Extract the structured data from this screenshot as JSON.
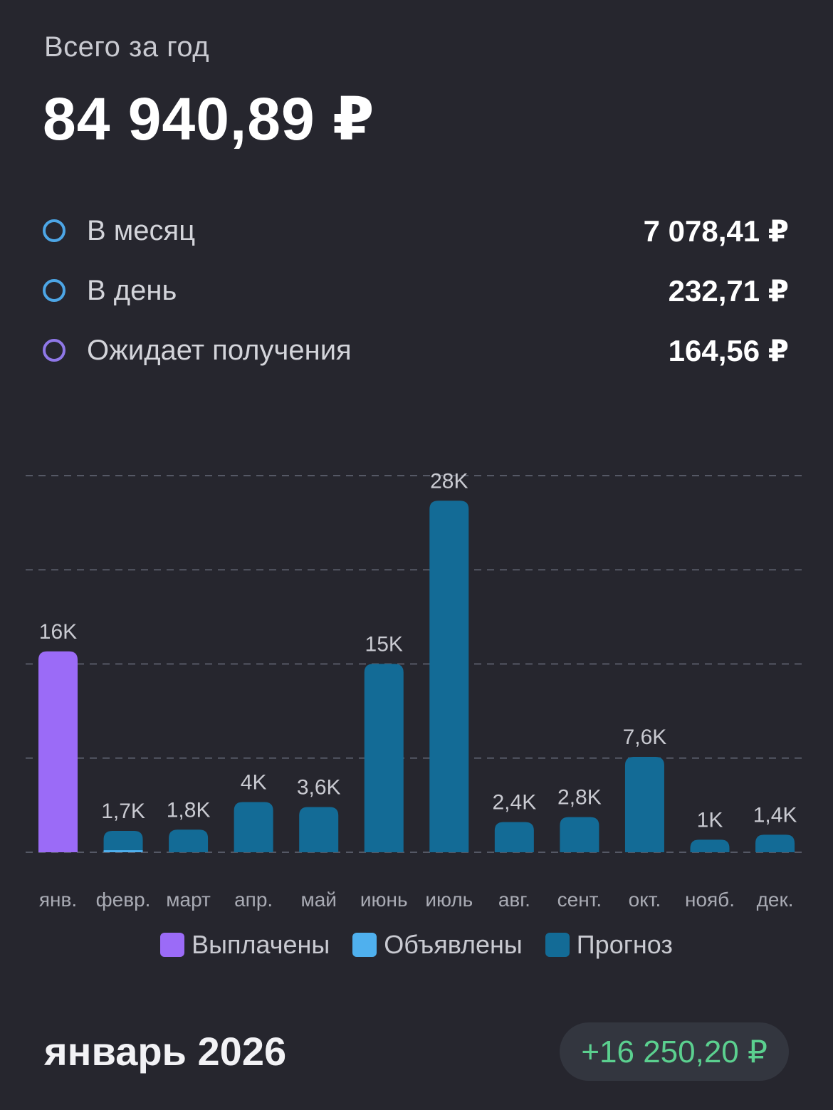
{
  "summary": {
    "total_label": "Всего за год",
    "total_value": "84 940,89 ₽"
  },
  "stats": [
    {
      "label": "В месяц",
      "value": "7 078,41 ₽",
      "icon": "blue-ring-icon",
      "color": "#4da6e6"
    },
    {
      "label": "В день",
      "value": "232,71 ₽",
      "icon": "blue-ring-icon",
      "color": "#4da6e6"
    },
    {
      "label": "Ожидает получения",
      "value": "164,56 ₽",
      "icon": "purple-ring-icon",
      "color": "#8f78e8"
    }
  ],
  "legend": [
    {
      "label": "Выплачены",
      "color": "#9b6bf7"
    },
    {
      "label": "Объявлены",
      "color": "#4fb0ee"
    },
    {
      "label": "Прогноз",
      "color": "#136b96"
    }
  ],
  "chart_data": {
    "type": "bar",
    "stacked": true,
    "categories": [
      "янв.",
      "февр.",
      "март",
      "апр.",
      "май",
      "июнь",
      "июль",
      "авг.",
      "сент.",
      "окт.",
      "нояб.",
      "дек."
    ],
    "series": [
      {
        "name": "Выплачены",
        "color": "#9b6bf7",
        "values": [
          16000,
          0,
          0,
          0,
          0,
          0,
          0,
          0,
          0,
          0,
          0,
          0
        ]
      },
      {
        "name": "Объявлены",
        "color": "#4fb0ee",
        "values": [
          0,
          164.56,
          0,
          0,
          0,
          0,
          0,
          0,
          0,
          0,
          0,
          0
        ]
      },
      {
        "name": "Прогноз",
        "color": "#136b96",
        "values": [
          0,
          1535,
          1800,
          4000,
          3600,
          15000,
          28000,
          2400,
          2800,
          7600,
          1000,
          1400
        ]
      }
    ],
    "totals": [
      16000,
      1700,
      1800,
      4000,
      3600,
      15000,
      28000,
      2400,
      2800,
      7600,
      1000,
      1400
    ],
    "data_labels": [
      "16K",
      "1,7K",
      "1,8K",
      "4K",
      "3,6K",
      "15K",
      "28K",
      "2,4K",
      "2,8K",
      "7,6K",
      "1K",
      "1,4K"
    ],
    "ylim": [
      0,
      30000
    ],
    "grid": true,
    "gridlines": [
      0,
      7500,
      15000,
      22500,
      30000
    ],
    "legend_position": "bottom"
  },
  "month_section": {
    "title": "январь 2026",
    "badge": "+16 250,20 ₽",
    "badge_color": "#5bd08f"
  }
}
